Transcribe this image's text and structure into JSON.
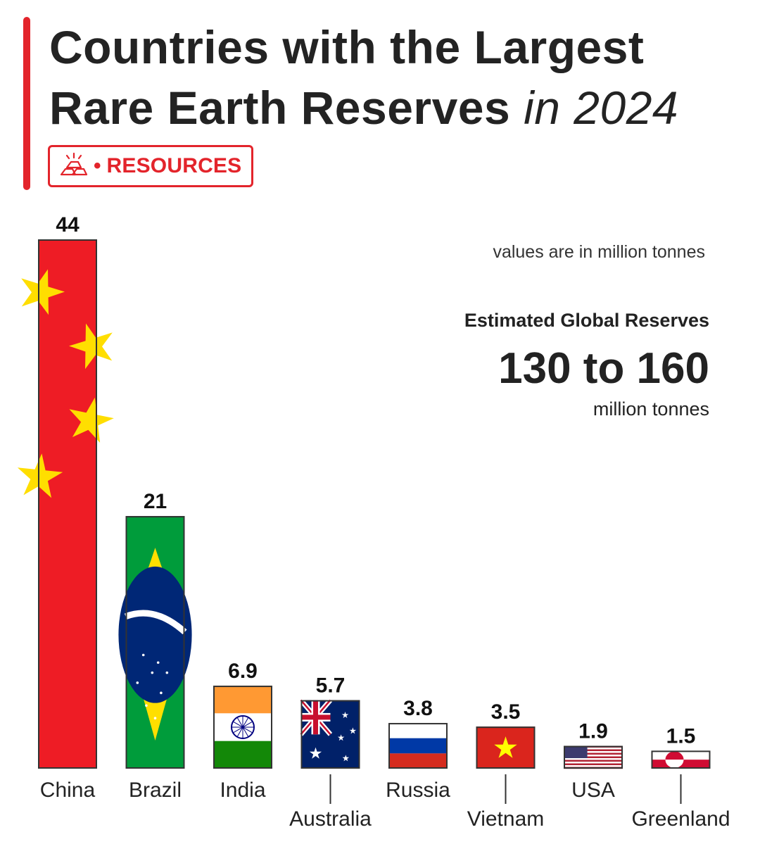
{
  "header": {
    "title_main": "Countries with the Largest Rare Earth Reserves",
    "title_year": "in 2024",
    "badge_icon": "gold-bars-icon",
    "badge_dot": "•",
    "badge_label": "RESOURCES"
  },
  "note": "values are in million tonnes",
  "estimate": {
    "heading": "Estimated  Global Reserves",
    "range": "130 to 160",
    "unit": "million tonnes"
  },
  "colors": {
    "accent": "#e3242b",
    "china_red": "#ee1c25",
    "china_star": "#ffde00",
    "brazil_green": "#009c3b",
    "brazil_yellow": "#ffdf00",
    "brazil_blue": "#002776",
    "india_saffron": "#ff9933",
    "india_green": "#138808",
    "india_chakra": "#000080",
    "aus_blue": "#012169",
    "russia_blue": "#0039a6",
    "russia_red": "#d52b1e",
    "vietnam_red": "#da251d",
    "vietnam_star": "#ffff00",
    "usa_red": "#b22234",
    "usa_blue": "#3c3b6e",
    "greenland_red": "#d00c33"
  },
  "chart_data": {
    "type": "bar",
    "title": "Countries with the Largest Rare Earth Reserves in 2024",
    "ylabel": "million tonnes",
    "ylim": [
      0,
      44
    ],
    "categories": [
      "China",
      "Brazil",
      "India",
      "Australia",
      "Russia",
      "Vietnam",
      "USA",
      "Greenland"
    ],
    "values": [
      44,
      21,
      6.9,
      5.7,
      3.8,
      3.5,
      1.9,
      1.5
    ],
    "value_labels": [
      "44",
      "21",
      "6.9",
      "5.7",
      "3.8",
      "3.5",
      "1.9",
      "1.5"
    ],
    "label_style": [
      "normal",
      "normal",
      "normal",
      "drop",
      "normal",
      "drop",
      "normal",
      "drop"
    ],
    "flags": [
      "china-flag",
      "brazil-flag",
      "india-flag",
      "australia-flag",
      "russia-flag",
      "vietnam-flag",
      "usa-flag",
      "greenland-flag"
    ]
  }
}
